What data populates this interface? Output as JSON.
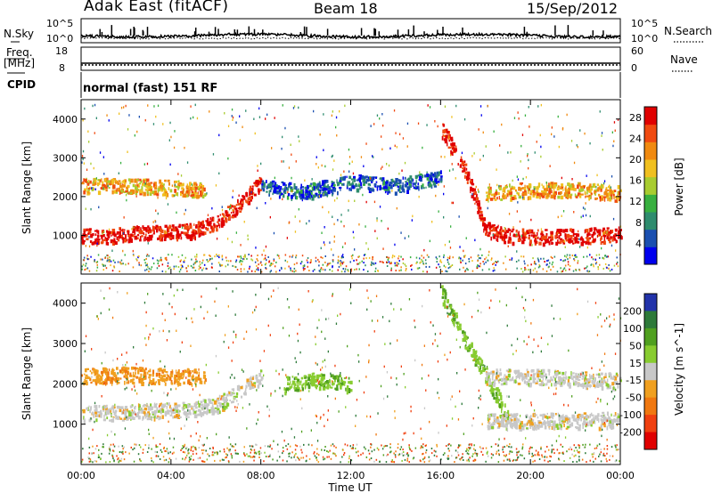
{
  "header": {
    "station": "Adak East (fitACF)",
    "beam": "Beam 18",
    "date": "15/Sep/2012"
  },
  "nsky_panel": {
    "left_label": "N.Sky",
    "right_label": "N.Search",
    "ticks": [
      "10^5",
      "10^0"
    ]
  },
  "freq_panel": {
    "left_label_top": "Freq.",
    "left_label_unit": "[MHz]",
    "left_ticks": [
      "18",
      "8"
    ],
    "right_label": "Nave",
    "right_ticks": [
      "60",
      "0"
    ]
  },
  "cpid_panel": {
    "label": "CPID",
    "mode": "normal (fast) 151 RF"
  },
  "colors": {
    "power_scale": [
      "#0000ee",
      "#1a4fb0",
      "#2e8c6e",
      "#38b040",
      "#a8cc30",
      "#f0c020",
      "#f08a10",
      "#f04a10",
      "#e00000"
    ],
    "velocity_scale": [
      "#2233aa",
      "#2e7a3a",
      "#50a020",
      "#88cc30",
      "#c8c8c8",
      "#c8c8c8",
      "#f0a020",
      "#f07810",
      "#f04010",
      "#e00000"
    ]
  },
  "chart_data": [
    {
      "type": "heatmap",
      "name": "power",
      "xlabel": "",
      "ylabel": "Slant Range [km]",
      "x_ticks": [
        "00:00",
        "04:00",
        "08:00",
        "12:00",
        "16:00",
        "20:00",
        "00:00"
      ],
      "y_ticks": [
        "1000",
        "2000",
        "3000",
        "4000"
      ],
      "ylim": [
        0,
        4500
      ],
      "colorbar": {
        "label": "Power [dB]",
        "ticks": [
          "4",
          "8",
          "12",
          "16",
          "20",
          "24",
          "28"
        ]
      },
      "bands": [
        {
          "x": [
            0,
            1,
            2,
            3,
            4,
            5,
            6,
            7,
            8
          ],
          "y": [
            1000,
            1000,
            1050,
            1100,
            1100,
            1150,
            1350,
            1800,
            2400
          ],
          "value": 28
        },
        {
          "x": [
            0,
            2,
            4,
            5.5
          ],
          "y": [
            2300,
            2300,
            2250,
            2200
          ],
          "value": 20
        },
        {
          "x": [
            8,
            9,
            10,
            12,
            14,
            16
          ],
          "y": [
            2300,
            2200,
            2150,
            2400,
            2300,
            2500
          ],
          "value": 6
        },
        {
          "x": [
            16,
            17,
            18,
            19,
            20,
            22,
            24
          ],
          "y": [
            3800,
            2800,
            1200,
            1000,
            1000,
            1000,
            1050
          ],
          "value": 28
        },
        {
          "x": [
            18,
            20,
            22,
            24
          ],
          "y": [
            2100,
            2200,
            2200,
            2100
          ],
          "value": 20
        }
      ]
    },
    {
      "type": "heatmap",
      "name": "velocity",
      "xlabel": "Time UT",
      "ylabel": "Slant Range [km]",
      "x_ticks": [
        "00:00",
        "04:00",
        "08:00",
        "12:00",
        "16:00",
        "20:00",
        "00:00"
      ],
      "y_ticks": [
        "1000",
        "2000",
        "3000",
        "4000"
      ],
      "ylim": [
        0,
        4500
      ],
      "colorbar": {
        "label": "Velocity [m s^-1]",
        "ticks": [
          "200",
          "100",
          "50",
          "15",
          "-15",
          "-50",
          "-100",
          "-200"
        ]
      },
      "bands": [
        {
          "x": [
            0,
            1,
            2,
            3,
            4,
            5,
            6,
            7,
            8
          ],
          "y": [
            1300,
            1300,
            1300,
            1350,
            1350,
            1400,
            1500,
            1800,
            2200
          ],
          "value": 0
        },
        {
          "x": [
            0,
            2,
            4,
            5.5
          ],
          "y": [
            2200,
            2250,
            2200,
            2200
          ],
          "value": -40
        },
        {
          "x": [
            9,
            10,
            11,
            12
          ],
          "y": [
            2000,
            2100,
            2100,
            2000
          ],
          "value": 40
        },
        {
          "x": [
            16,
            17,
            18,
            19
          ],
          "y": [
            4300,
            3200,
            2200,
            1200
          ],
          "value": 40
        },
        {
          "x": [
            18,
            20,
            22,
            24
          ],
          "y": [
            1100,
            1100,
            1100,
            1150
          ],
          "value": 0
        },
        {
          "x": [
            18,
            20,
            22,
            24
          ],
          "y": [
            2200,
            2200,
            2150,
            2100
          ],
          "value": 0
        }
      ]
    }
  ]
}
